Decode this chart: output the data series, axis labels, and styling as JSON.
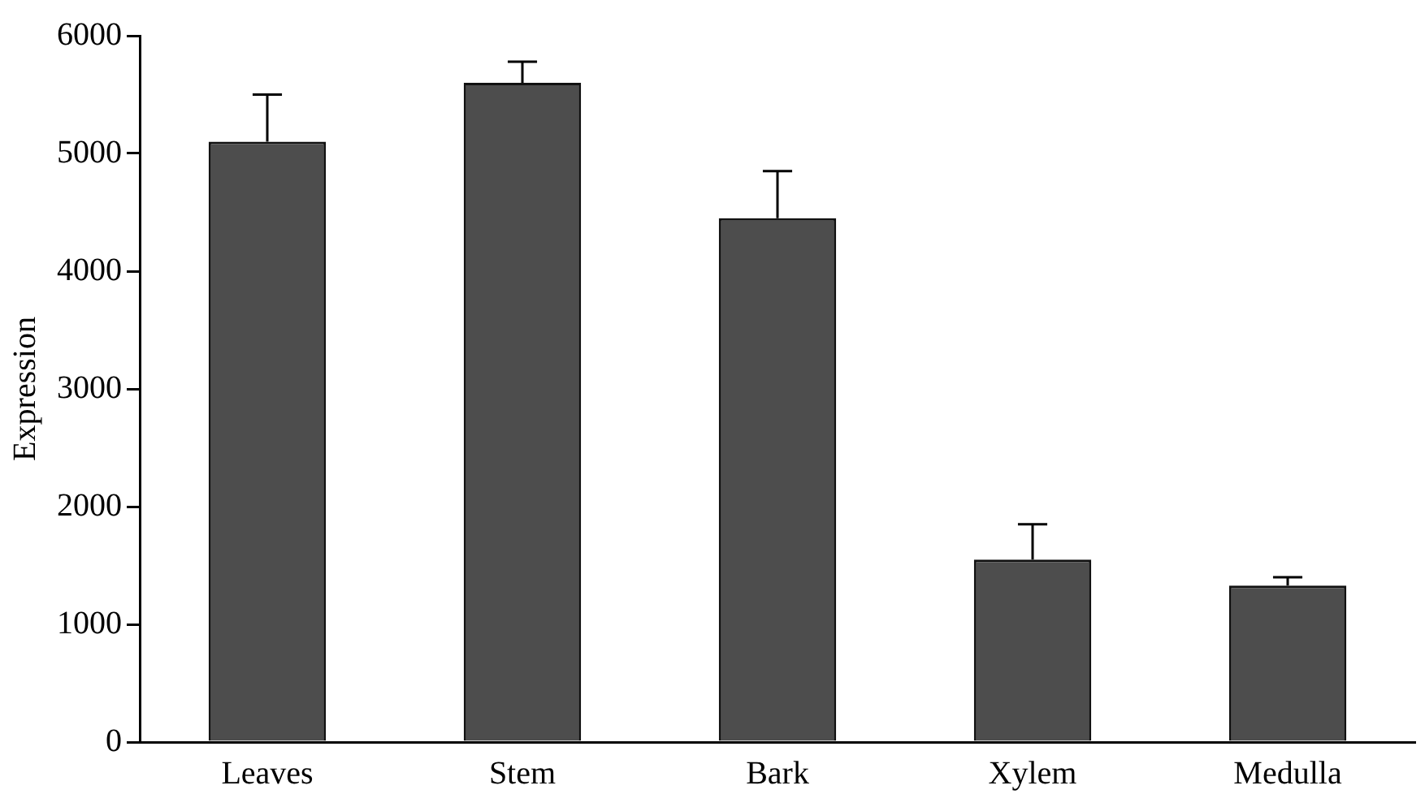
{
  "chart_data": {
    "type": "bar",
    "ylabel": "Expression",
    "categories": [
      "Leaves",
      "Stem",
      "Bark",
      "Xylem",
      "Medulla"
    ],
    "values": [
      5100,
      5600,
      4450,
      1550,
      1330
    ],
    "errors": [
      [
        5100,
        5500
      ],
      [
        5600,
        5780
      ],
      [
        4450,
        4850
      ],
      [
        1550,
        1850
      ],
      [
        1330,
        1400
      ]
    ],
    "color": "#4d4d4d",
    "ylim": [
      0,
      6000
    ],
    "yticks": [
      0,
      1000,
      2000,
      3000,
      4000,
      5000,
      6000
    ],
    "grid": false,
    "legend": false
  }
}
